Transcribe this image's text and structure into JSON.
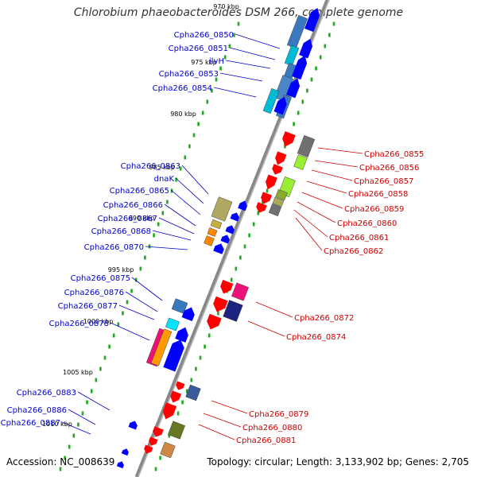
{
  "title": "Chlorobium phaeobacteroides DSM 266, complete genome",
  "footer": {
    "accession_label": "Accession:",
    "accession": "NC_008639",
    "topology_label": "Topology:",
    "topology": "circular",
    "length_label": "Length:",
    "length": "3,133,902 bp",
    "genes_label": "Genes:",
    "genes": "2,705"
  },
  "colors": {
    "forward_label": "#0000cc",
    "reverse_label": "#cc0000",
    "backbone": "#888888",
    "tick_dots": "#22aa22"
  },
  "ticks": [
    "970 kbp",
    "975 kbp",
    "980 kbp",
    "985 kbp",
    "990 kbp",
    "995 kbp",
    "1000 kbp",
    "1005 kbp",
    "1010 kbp"
  ],
  "forward_genes": [
    {
      "id": "Cpha266_0850"
    },
    {
      "id": "Cpha266_0851"
    },
    {
      "id": "ilvH"
    },
    {
      "id": "Cpha266_0853"
    },
    {
      "id": "Cpha266_0854"
    },
    {
      "id": "Cpha266_0863"
    },
    {
      "id": "dnaK"
    },
    {
      "id": "Cpha266_0865"
    },
    {
      "id": "Cpha266_0866"
    },
    {
      "id": "Cpha266_0867"
    },
    {
      "id": "Cpha266_0868"
    },
    {
      "id": "Cpha266_0870"
    },
    {
      "id": "Cpha266_0875"
    },
    {
      "id": "Cpha266_0876"
    },
    {
      "id": "Cpha266_0877"
    },
    {
      "id": "Cpha266_0878"
    },
    {
      "id": "Cpha266_0883"
    },
    {
      "id": "Cpha266_0886"
    },
    {
      "id": "Cpha266_0887"
    }
  ],
  "reverse_genes": [
    {
      "id": "Cpha266_0855"
    },
    {
      "id": "Cpha266_0856"
    },
    {
      "id": "Cpha266_0857"
    },
    {
      "id": "Cpha266_0858"
    },
    {
      "id": "Cpha266_0859"
    },
    {
      "id": "Cpha266_0860"
    },
    {
      "id": "Cpha266_0861"
    },
    {
      "id": "Cpha266_0862"
    },
    {
      "id": "Cpha266_0872"
    },
    {
      "id": "Cpha266_0874"
    },
    {
      "id": "Cpha266_0879"
    },
    {
      "id": "Cpha266_0880"
    },
    {
      "id": "Cpha266_0881"
    }
  ]
}
